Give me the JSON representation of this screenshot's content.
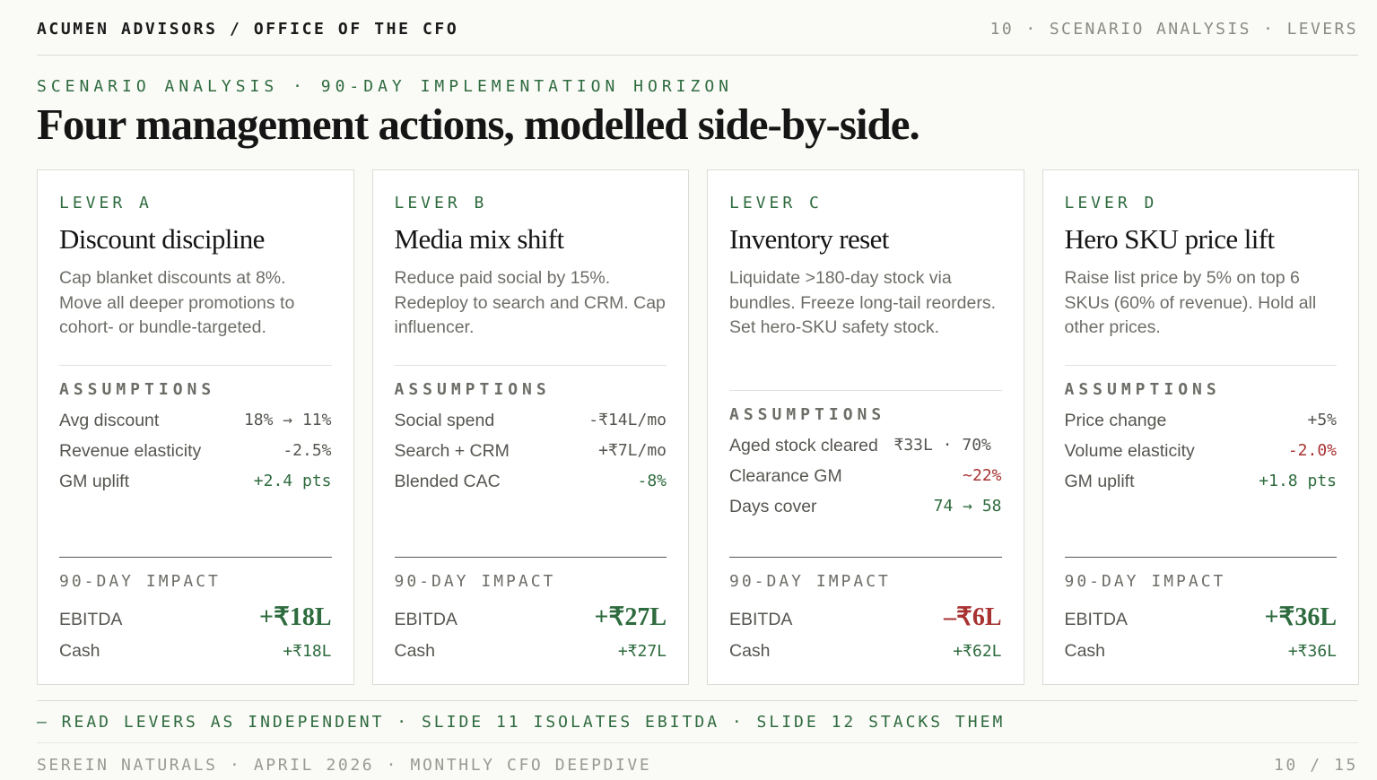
{
  "header": {
    "brand": "ACUMEN ADVISORS / OFFICE OF THE CFO",
    "slide_ref": "10 · SCENARIO ANALYSIS · LEVERS"
  },
  "kicker": "SCENARIO ANALYSIS · 90-DAY IMPLEMENTATION HORIZON",
  "headline": "Four management actions, modelled side-by-side.",
  "labels": {
    "assumptions": "ASSUMPTIONS",
    "impact": "90-DAY IMPACT",
    "ebitda": "EBITDA",
    "cash": "Cash"
  },
  "levers": [
    {
      "tag": "LEVER A",
      "name": "Discount discipline",
      "desc": "Cap blanket discounts at 8%. Move all deeper promotions to cohort- or bundle-targeted.",
      "assumptions": [
        {
          "label": "Avg discount",
          "value": "18% → 11%",
          "tone": "neutral"
        },
        {
          "label": "Revenue elasticity",
          "value": "-2.5%",
          "tone": "neutral"
        },
        {
          "label": "GM uplift",
          "value": "+2.4 pts",
          "tone": "pos"
        }
      ],
      "ebitda": "+₹18L",
      "ebitda_tone": "pos",
      "cash": "+₹18L"
    },
    {
      "tag": "LEVER B",
      "name": "Media mix shift",
      "desc": "Reduce paid social by 15%. Redeploy to search and CRM. Cap influencer.",
      "assumptions": [
        {
          "label": "Social spend",
          "value": "-₹14L/mo",
          "tone": "neutral"
        },
        {
          "label": "Search + CRM",
          "value": "+₹7L/mo",
          "tone": "neutral"
        },
        {
          "label": "Blended CAC",
          "value": "-8%",
          "tone": "pos"
        }
      ],
      "ebitda": "+₹27L",
      "ebitda_tone": "pos",
      "cash": "+₹27L"
    },
    {
      "tag": "LEVER C",
      "name": "Inventory reset",
      "desc": "Liquidate >180-day stock via bundles. Freeze long-tail reorders. Set hero-SKU safety stock.",
      "assumptions": [
        {
          "label": "Aged stock cleared",
          "value": "₹33L · 70%",
          "tone": "neutral",
          "split": true
        },
        {
          "label": "Clearance GM",
          "value": "~22%",
          "tone": "neg"
        },
        {
          "label": "Days cover",
          "value": "74 → 58",
          "tone": "pos"
        }
      ],
      "ebitda": "–₹6L",
      "ebitda_tone": "neg",
      "cash": "+₹62L"
    },
    {
      "tag": "LEVER D",
      "name": "Hero SKU price lift",
      "desc": "Raise list price by 5% on top 6 SKUs (60% of revenue). Hold all other prices.",
      "assumptions": [
        {
          "label": "Price change",
          "value": "+5%",
          "tone": "neutral"
        },
        {
          "label": "Volume elasticity",
          "value": "-2.0%",
          "tone": "neg"
        },
        {
          "label": "GM uplift",
          "value": "+1.8 pts",
          "tone": "pos"
        }
      ],
      "ebitda": "+₹36L",
      "ebitda_tone": "pos",
      "cash": "+₹36L"
    }
  ],
  "note": "— READ LEVERS AS INDEPENDENT · SLIDE 11 ISOLATES EBITDA · SLIDE 12 STACKS THEM",
  "footer": {
    "left": "SEREIN NATURALS · APRIL 2026 · MONTHLY CFO DEEPDIVE",
    "right": "10 / 15"
  }
}
